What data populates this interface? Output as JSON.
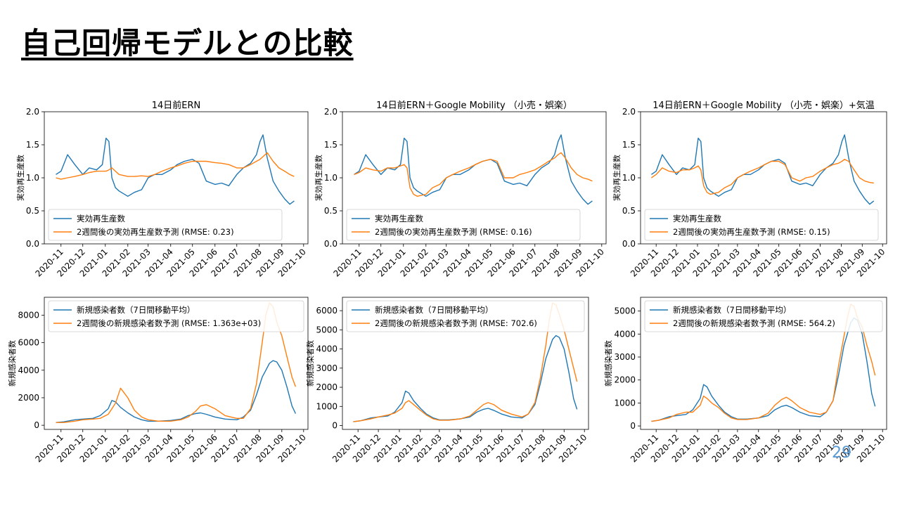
{
  "slide": {
    "title": "自己回帰モデルとの比較",
    "page_number": "29"
  },
  "colors": {
    "actual": "#1f77b4",
    "predicted": "#ff7f0e"
  },
  "chart_data": [
    {
      "type": "line",
      "title": "14日前ERN",
      "ylabel": "実効再生産数",
      "ylim": [
        0.0,
        2.0
      ],
      "yticks": [
        "0.0",
        "0.5",
        "1.0",
        "1.5",
        "2.0"
      ],
      "x_ticks": [
        "2020-11",
        "2020-12",
        "2021-01",
        "2021-02",
        "2021-03",
        "2021-04",
        "2021-05",
        "2021-06",
        "2021-07",
        "2021-08",
        "2021-09",
        "2021-10"
      ],
      "x_dates": [
        "2020-10-25",
        "2020-11-01",
        "2020-11-10",
        "2020-11-20",
        "2020-12-01",
        "2020-12-10",
        "2020-12-20",
        "2020-12-28",
        "2021-01-02",
        "2021-01-06",
        "2021-01-10",
        "2021-01-15",
        "2021-01-20",
        "2021-02-01",
        "2021-02-10",
        "2021-02-20",
        "2021-03-01",
        "2021-03-10",
        "2021-03-20",
        "2021-04-01",
        "2021-04-10",
        "2021-04-20",
        "2021-05-01",
        "2021-05-10",
        "2021-05-20",
        "2021-06-01",
        "2021-06-10",
        "2021-06-20",
        "2021-07-01",
        "2021-07-10",
        "2021-07-20",
        "2021-07-28",
        "2021-08-02",
        "2021-08-06",
        "2021-08-12",
        "2021-08-20",
        "2021-08-28",
        "2021-09-05",
        "2021-09-12",
        "2021-09-18"
      ],
      "legend": "lower-left",
      "series": [
        {
          "name": "実効再生産数",
          "values": [
            1.05,
            1.1,
            1.35,
            1.2,
            1.05,
            1.15,
            1.12,
            1.2,
            1.6,
            1.55,
            1.0,
            0.85,
            0.8,
            0.72,
            0.78,
            0.82,
            1.0,
            1.05,
            1.05,
            1.12,
            1.2,
            1.25,
            1.28,
            1.22,
            0.95,
            0.9,
            0.92,
            0.88,
            1.05,
            1.15,
            1.22,
            1.35,
            1.55,
            1.65,
            1.3,
            0.95,
            0.8,
            0.68,
            0.6,
            0.65
          ]
        },
        {
          "name": "2週間後の実効再生産数予測 (RMSE: 0.23)",
          "values": [
            1.0,
            0.98,
            1.0,
            1.02,
            1.05,
            1.08,
            1.1,
            1.1,
            1.1,
            1.12,
            1.15,
            1.1,
            1.05,
            1.02,
            1.02,
            1.03,
            1.02,
            1.05,
            1.1,
            1.15,
            1.18,
            1.22,
            1.25,
            1.25,
            1.25,
            1.23,
            1.22,
            1.2,
            1.15,
            1.15,
            1.2,
            1.25,
            1.28,
            1.32,
            1.38,
            1.25,
            1.15,
            1.1,
            1.05,
            1.02
          ]
        }
      ]
    },
    {
      "type": "line",
      "title": "14日前ERN＋Google Mobility （小売・娯楽）",
      "ylabel": "実効再生産数",
      "ylim": [
        0.0,
        2.0
      ],
      "yticks": [
        "0.0",
        "0.5",
        "1.0",
        "1.5",
        "2.0"
      ],
      "x_ticks": [
        "2020-11",
        "2020-12",
        "2021-01",
        "2021-02",
        "2021-03",
        "2021-04",
        "2021-05",
        "2021-06",
        "2021-07",
        "2021-08",
        "2021-09",
        "2021-10"
      ],
      "x_dates": [
        "2020-10-25",
        "2020-11-01",
        "2020-11-10",
        "2020-11-20",
        "2020-12-01",
        "2020-12-10",
        "2020-12-20",
        "2020-12-28",
        "2021-01-02",
        "2021-01-06",
        "2021-01-10",
        "2021-01-15",
        "2021-01-20",
        "2021-02-01",
        "2021-02-10",
        "2021-02-20",
        "2021-03-01",
        "2021-03-10",
        "2021-03-20",
        "2021-04-01",
        "2021-04-10",
        "2021-04-20",
        "2021-05-01",
        "2021-05-10",
        "2021-05-20",
        "2021-06-01",
        "2021-06-10",
        "2021-06-20",
        "2021-07-01",
        "2021-07-10",
        "2021-07-20",
        "2021-07-28",
        "2021-08-02",
        "2021-08-06",
        "2021-08-12",
        "2021-08-20",
        "2021-08-28",
        "2021-09-05",
        "2021-09-12",
        "2021-09-18"
      ],
      "legend": "lower-left",
      "series": [
        {
          "name": "実効再生産数",
          "values": [
            1.05,
            1.1,
            1.35,
            1.2,
            1.05,
            1.15,
            1.12,
            1.2,
            1.6,
            1.55,
            1.0,
            0.85,
            0.8,
            0.72,
            0.78,
            0.82,
            1.0,
            1.05,
            1.05,
            1.12,
            1.2,
            1.25,
            1.28,
            1.22,
            0.95,
            0.9,
            0.92,
            0.88,
            1.05,
            1.15,
            1.22,
            1.35,
            1.55,
            1.65,
            1.3,
            0.95,
            0.8,
            0.68,
            0.6,
            0.65
          ]
        },
        {
          "name": "2週間後の実効再生産数予測 (RMSE: 0.16)",
          "values": [
            1.05,
            1.08,
            1.15,
            1.12,
            1.1,
            1.15,
            1.15,
            1.18,
            1.2,
            1.15,
            0.85,
            0.75,
            0.72,
            0.75,
            0.85,
            0.9,
            1.0,
            1.05,
            1.1,
            1.15,
            1.2,
            1.25,
            1.28,
            1.25,
            1.0,
            1.0,
            1.05,
            1.08,
            1.12,
            1.18,
            1.25,
            1.3,
            1.35,
            1.38,
            1.3,
            1.15,
            1.05,
            1.0,
            0.98,
            0.95
          ]
        }
      ]
    },
    {
      "type": "line",
      "title": "14日前ERN＋Google Mobility （小売・娯楽）+気温",
      "ylabel": "実効再生産数",
      "ylim": [
        0.0,
        2.0
      ],
      "yticks": [
        "0.0",
        "0.5",
        "1.0",
        "1.5",
        "2.0"
      ],
      "x_ticks": [
        "2020-11",
        "2020-12",
        "2021-01",
        "2021-02",
        "2021-03",
        "2021-04",
        "2021-05",
        "2021-06",
        "2021-07",
        "2021-08",
        "2021-09",
        "2021-10"
      ],
      "x_dates": [
        "2020-10-25",
        "2020-11-01",
        "2020-11-10",
        "2020-11-20",
        "2020-12-01",
        "2020-12-10",
        "2020-12-20",
        "2020-12-28",
        "2021-01-02",
        "2021-01-06",
        "2021-01-10",
        "2021-01-15",
        "2021-01-20",
        "2021-02-01",
        "2021-02-10",
        "2021-02-20",
        "2021-03-01",
        "2021-03-10",
        "2021-03-20",
        "2021-04-01",
        "2021-04-10",
        "2021-04-20",
        "2021-05-01",
        "2021-05-10",
        "2021-05-20",
        "2021-06-01",
        "2021-06-10",
        "2021-06-20",
        "2021-07-01",
        "2021-07-10",
        "2021-07-20",
        "2021-07-28",
        "2021-08-02",
        "2021-08-06",
        "2021-08-12",
        "2021-08-20",
        "2021-08-28",
        "2021-09-05",
        "2021-09-12",
        "2021-09-18"
      ],
      "legend": "lower-left",
      "series": [
        {
          "name": "実効再生産数",
          "values": [
            1.05,
            1.1,
            1.35,
            1.2,
            1.05,
            1.15,
            1.12,
            1.2,
            1.6,
            1.55,
            1.0,
            0.85,
            0.8,
            0.72,
            0.78,
            0.82,
            1.0,
            1.05,
            1.05,
            1.12,
            1.2,
            1.25,
            1.28,
            1.22,
            0.95,
            0.9,
            0.92,
            0.88,
            1.05,
            1.15,
            1.22,
            1.35,
            1.55,
            1.65,
            1.3,
            0.95,
            0.8,
            0.68,
            0.6,
            0.65
          ]
        },
        {
          "name": "2週間後の実効再生産数予測 (RMSE: 0.15)",
          "values": [
            1.0,
            1.05,
            1.15,
            1.1,
            1.08,
            1.12,
            1.12,
            1.15,
            1.18,
            1.12,
            0.88,
            0.78,
            0.75,
            0.78,
            0.85,
            0.9,
            1.0,
            1.05,
            1.1,
            1.15,
            1.2,
            1.25,
            1.25,
            1.2,
            1.0,
            0.95,
            1.0,
            1.02,
            1.1,
            1.15,
            1.2,
            1.22,
            1.25,
            1.28,
            1.25,
            1.12,
            1.0,
            0.95,
            0.93,
            0.92
          ]
        }
      ]
    },
    {
      "type": "line",
      "title": "",
      "ylabel": "新規感染者数",
      "ylim": [
        -300,
        9300
      ],
      "yticks": [
        "0",
        "2000",
        "4000",
        "6000",
        "8000"
      ],
      "x_ticks": [
        "2020-11",
        "2020-12",
        "2021-01",
        "2021-02",
        "2021-03",
        "2021-04",
        "2021-05",
        "2021-06",
        "2021-07",
        "2021-08",
        "2021-09",
        "2021-10"
      ],
      "x_dates": [
        "2020-10-25",
        "2020-11-05",
        "2020-11-20",
        "2020-12-01",
        "2020-12-15",
        "2020-12-25",
        "2021-01-05",
        "2021-01-10",
        "2021-01-15",
        "2021-01-22",
        "2021-02-01",
        "2021-02-10",
        "2021-02-20",
        "2021-03-01",
        "2021-03-15",
        "2021-04-01",
        "2021-04-15",
        "2021-04-25",
        "2021-05-05",
        "2021-05-12",
        "2021-05-20",
        "2021-06-01",
        "2021-06-15",
        "2021-07-01",
        "2021-07-10",
        "2021-07-20",
        "2021-07-28",
        "2021-08-05",
        "2021-08-10",
        "2021-08-15",
        "2021-08-20",
        "2021-08-25",
        "2021-09-01",
        "2021-09-08",
        "2021-09-15",
        "2021-09-20"
      ],
      "legend": "upper-left",
      "series": [
        {
          "name": "新規感染者数（7日間移動平均）",
          "values": [
            200,
            250,
            400,
            450,
            500,
            700,
            1200,
            1800,
            1700,
            1300,
            900,
            600,
            400,
            300,
            300,
            350,
            450,
            700,
            850,
            900,
            800,
            600,
            450,
            400,
            600,
            1100,
            2200,
            3500,
            4000,
            4500,
            4700,
            4600,
            4000,
            2800,
            1400,
            850
          ]
        },
        {
          "name": "2週間後の新規感染者数予測 (RMSE: 1.363e+03)",
          "values": [
            200,
            200,
            300,
            400,
            450,
            500,
            800,
            1200,
            1600,
            2700,
            2000,
            1100,
            600,
            400,
            300,
            300,
            400,
            600,
            1000,
            1400,
            1500,
            1200,
            700,
            500,
            500,
            1200,
            3000,
            6000,
            8000,
            8900,
            8600,
            7500,
            6500,
            5000,
            3500,
            2800
          ]
        }
      ]
    },
    {
      "type": "line",
      "title": "",
      "ylabel": "新規感染者数",
      "ylim": [
        -200,
        6700
      ],
      "yticks": [
        "0",
        "1000",
        "2000",
        "3000",
        "4000",
        "5000",
        "6000"
      ],
      "x_ticks": [
        "2020-11",
        "2020-12",
        "2021-01",
        "2021-02",
        "2021-03",
        "2021-04",
        "2021-05",
        "2021-06",
        "2021-07",
        "2021-08",
        "2021-09",
        "2021-10"
      ],
      "x_dates": [
        "2020-10-25",
        "2020-11-05",
        "2020-11-20",
        "2020-12-01",
        "2020-12-15",
        "2020-12-25",
        "2021-01-05",
        "2021-01-10",
        "2021-01-15",
        "2021-01-22",
        "2021-02-01",
        "2021-02-10",
        "2021-02-20",
        "2021-03-01",
        "2021-03-15",
        "2021-04-01",
        "2021-04-15",
        "2021-04-25",
        "2021-05-05",
        "2021-05-12",
        "2021-05-20",
        "2021-06-01",
        "2021-06-15",
        "2021-07-01",
        "2021-07-10",
        "2021-07-20",
        "2021-07-28",
        "2021-08-05",
        "2021-08-10",
        "2021-08-15",
        "2021-08-20",
        "2021-08-25",
        "2021-09-01",
        "2021-09-08",
        "2021-09-15",
        "2021-09-20"
      ],
      "legend": "upper-left",
      "series": [
        {
          "name": "新規感染者数（7日間移動平均）",
          "values": [
            200,
            250,
            400,
            450,
            500,
            700,
            1200,
            1800,
            1700,
            1300,
            900,
            600,
            400,
            300,
            300,
            350,
            450,
            700,
            850,
            900,
            800,
            600,
            450,
            400,
            600,
            1100,
            2200,
            3500,
            4000,
            4500,
            4700,
            4600,
            4000,
            2800,
            1400,
            850
          ]
        },
        {
          "name": "2週間後の新規感染者数予測 (RMSE: 702.6)",
          "values": [
            200,
            250,
            350,
            450,
            550,
            650,
            900,
            1200,
            1300,
            1100,
            800,
            550,
            350,
            280,
            280,
            350,
            500,
            800,
            1100,
            1200,
            1100,
            800,
            600,
            450,
            600,
            1200,
            2500,
            4200,
            5500,
            6400,
            6300,
            5800,
            5000,
            4000,
            3000,
            2300
          ]
        }
      ]
    },
    {
      "type": "line",
      "title": "",
      "ylabel": "新規感染者数",
      "ylim": [
        -150,
        5600
      ],
      "yticks": [
        "0",
        "1000",
        "2000",
        "3000",
        "4000",
        "5000"
      ],
      "x_ticks": [
        "2020-11",
        "2020-12",
        "2021-01",
        "2021-02",
        "2021-03",
        "2021-04",
        "2021-05",
        "2021-06",
        "2021-07",
        "2021-08",
        "2021-09",
        "2021-10"
      ],
      "x_dates": [
        "2020-10-25",
        "2020-11-05",
        "2020-11-20",
        "2020-12-01",
        "2020-12-15",
        "2020-12-25",
        "2021-01-05",
        "2021-01-10",
        "2021-01-15",
        "2021-01-22",
        "2021-02-01",
        "2021-02-10",
        "2021-02-20",
        "2021-03-01",
        "2021-03-15",
        "2021-04-01",
        "2021-04-15",
        "2021-04-25",
        "2021-05-05",
        "2021-05-12",
        "2021-05-20",
        "2021-06-01",
        "2021-06-15",
        "2021-07-01",
        "2021-07-10",
        "2021-07-20",
        "2021-07-28",
        "2021-08-05",
        "2021-08-10",
        "2021-08-15",
        "2021-08-20",
        "2021-08-25",
        "2021-09-01",
        "2021-09-08",
        "2021-09-15",
        "2021-09-20"
      ],
      "legend": "upper-left",
      "series": [
        {
          "name": "新規感染者数（7日間移動平均）",
          "values": [
            200,
            250,
            400,
            450,
            500,
            700,
            1200,
            1800,
            1700,
            1300,
            900,
            600,
            400,
            300,
            300,
            350,
            450,
            700,
            850,
            900,
            800,
            600,
            450,
            400,
            600,
            1100,
            2200,
            3500,
            4000,
            4500,
            4700,
            4600,
            4000,
            2800,
            1400,
            850
          ]
        },
        {
          "name": "2週間後の新規感染者数予測 (RMSE: 564.2)",
          "values": [
            200,
            250,
            350,
            500,
            600,
            600,
            900,
            1300,
            1200,
            1000,
            800,
            550,
            350,
            280,
            280,
            350,
            550,
            900,
            1150,
            1250,
            1100,
            800,
            600,
            500,
            600,
            1100,
            2600,
            3900,
            4700,
            5300,
            5200,
            4700,
            4300,
            3500,
            2800,
            2200
          ]
        }
      ]
    }
  ]
}
